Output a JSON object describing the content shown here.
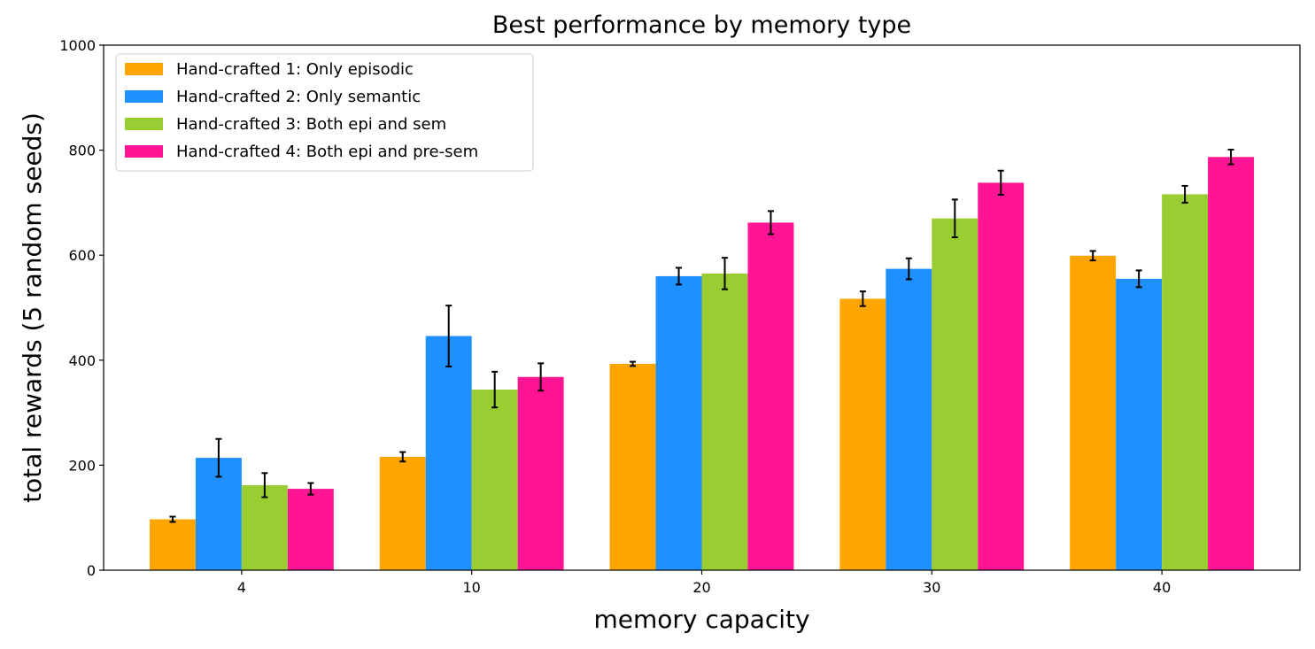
{
  "chart_data": {
    "type": "bar",
    "title": "Best performance by memory type",
    "xlabel": "memory capacity",
    "ylabel": "total rewards (5 random seeds)",
    "categories": [
      "4",
      "10",
      "20",
      "30",
      "40"
    ],
    "ylim": [
      0,
      1000
    ],
    "yticks": [
      "0",
      "200",
      "400",
      "600",
      "800",
      "1000"
    ],
    "legend_position": "top-left",
    "grid": false,
    "error_bars": true,
    "series": [
      {
        "name": "Hand-crafted 1: Only episodic",
        "color": "#FFA500",
        "values": [
          97,
          216,
          393,
          517,
          599
        ],
        "errors": [
          5,
          9,
          4,
          14,
          9
        ]
      },
      {
        "name": "Hand-crafted 2: Only semantic",
        "color": "#1E90FF",
        "values": [
          214,
          446,
          560,
          574,
          555
        ],
        "errors": [
          36,
          58,
          16,
          20,
          16
        ]
      },
      {
        "name": "Hand-crafted 3: Both epi and sem",
        "color": "#9ACD32",
        "values": [
          162,
          344,
          565,
          670,
          716
        ],
        "errors": [
          23,
          34,
          30,
          36,
          16
        ]
      },
      {
        "name": "Hand-crafted 4: Both epi and pre-sem",
        "color": "#FF1493",
        "values": [
          155,
          368,
          662,
          738,
          787
        ],
        "errors": [
          11,
          26,
          22,
          23,
          14
        ]
      }
    ]
  }
}
